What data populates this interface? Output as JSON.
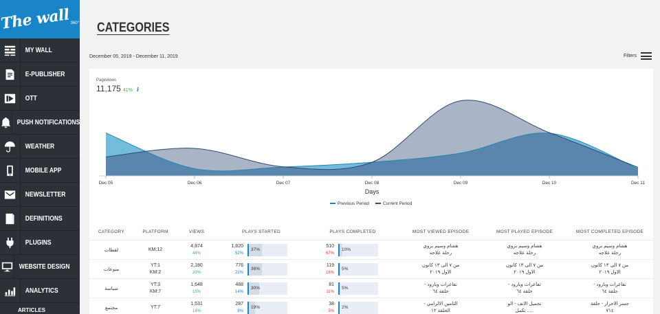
{
  "logo": {
    "text": "The wall",
    "sup": "360°"
  },
  "sidebar": {
    "items": [
      {
        "label": "MY WALL",
        "icon": "brick-wall-icon"
      },
      {
        "label": "E-PUBLISHER",
        "icon": "document-edit-icon"
      },
      {
        "label": "OTT",
        "icon": "play-icon"
      },
      {
        "label": "PUSH NOTIFICATIONS",
        "icon": "bell-icon"
      },
      {
        "label": "WEATHER",
        "icon": "umbrella-icon"
      },
      {
        "label": "MOBILE APP",
        "icon": "mobile-icon"
      },
      {
        "label": "NEWSLETTER",
        "icon": "newsletter-icon"
      },
      {
        "label": "DEFINITIONS",
        "icon": "book-icon"
      },
      {
        "label": "PLUGINS",
        "icon": "plug-icon"
      },
      {
        "label": "WEBSITE DESIGN",
        "icon": "monitor-icon"
      },
      {
        "label": "ANALYTICS",
        "icon": "analytics-icon"
      }
    ],
    "sub_item": "ARTICLES"
  },
  "page": {
    "title": "CATEGORIES",
    "date_range": "December 05, 2019 - December 11, 2019",
    "filters_label": "Filters"
  },
  "metric": {
    "label": "Pageviews",
    "value": "11,175",
    "change": "41%",
    "info": "i"
  },
  "chart_data": {
    "type": "area",
    "x": [
      "Dec 05",
      "Dec 06",
      "Dec 07",
      "Dec 08",
      "Dec 09",
      "Dec 10",
      "Dec 11"
    ],
    "xlabel": "Days",
    "series": [
      {
        "name": "Current Period",
        "values": [
          1000,
          1450,
          480,
          720,
          3960,
          2280,
          450
        ]
      },
      {
        "name": "Previous Period",
        "values": [
          2260,
          380,
          470,
          720,
          1200,
          2250,
          380
        ]
      }
    ],
    "legend": "bottom",
    "colors": {
      "current_fill": "#9aa8bd",
      "current_line": "#2e4a75",
      "previous_fill": "#5ab0d6",
      "previous_line": "#1d86b0",
      "overlap_fill": "#5a86ad"
    }
  },
  "table": {
    "headers": [
      "CATEGORY",
      "PLATFORM",
      "VIEWS",
      "PLAYS STARTED",
      "PLAYS COMPLETED",
      "MOST VIEWED EPISODE",
      "MOST PLAYED EPISODE",
      "MOST COMPLETED EPISODE"
    ],
    "rows": [
      {
        "category": "لقطات",
        "platform": [
          "KM:12"
        ],
        "views": "4,874",
        "views_pct": "44%",
        "ps": "1,820",
        "ps_pct": "52%",
        "ps_bar": "37%",
        "ps_frac": 0.37,
        "pc": "510",
        "pc_pct": "67%",
        "pc_bar": "10%",
        "pc_frac": 0.1,
        "mv": [
          "هشام وسيم بروي",
          "رحلة علاجه"
        ],
        "mp": [
          "هشام وسيم بروي",
          "رحلة علاجه"
        ],
        "mc": [
          "هشام وسيم بروي",
          "رحلة علاجه"
        ]
      },
      {
        "category": "منوعات",
        "platform": [
          "YT:1",
          "KM:2"
        ],
        "views": "2,180",
        "views_pct": "20%",
        "ps": "776",
        "ps_pct": "22%",
        "ps_bar": "36%",
        "ps_frac": 0.36,
        "pc": "119",
        "pc_pct": "16%",
        "pc_bar": "5%",
        "pc_frac": 0.05,
        "mv": [
          "من ٧ الى ١٣ كانون",
          "الاول ٢٠١٩"
        ],
        "mp": [
          "من ٧ الى ١٣ كانون",
          "الاول ٢٠١٩"
        ],
        "mc": [
          "من ٧ الى ١٣ كانون",
          "الاول ٢٠١٩"
        ]
      },
      {
        "category": "سياسة",
        "platform": [
          "YT:3",
          "KM:7"
        ],
        "views": "1,648",
        "views_pct": "15%",
        "ps": "488",
        "ps_pct": "14%",
        "ps_bar": "30%",
        "ps_frac": 0.3,
        "pc": "81",
        "pc_pct": "11%",
        "pc_bar": "5%",
        "pc_frac": 0.05,
        "mv": [
          "تفاعرات وبارود -",
          "حلقة ٦٤"
        ],
        "mp": [
          "تفاعرات وبارود -",
          "حلقة ٦٤"
        ],
        "mc": [
          "تفاعرات وبارود -",
          "حلقة ٦٤"
        ]
      },
      {
        "category": "مجتمع",
        "platform": [
          "YT:7"
        ],
        "views": "1,531",
        "views_pct": "14%",
        "ps": "287",
        "ps_pct": "8%",
        "ps_bar": "19%",
        "ps_frac": 0.19,
        "pc": "38",
        "pc_pct": "5%",
        "pc_bar": "2%",
        "pc_frac": 0.02,
        "mv": [
          "التامين الالزامي -",
          "الحلقة ١٢"
        ],
        "mp": [
          "تجميل الانف - الو",
          "..... تكمل"
        ],
        "mc": [
          "جسر الاحرار - حلقة",
          "٧١٤"
        ]
      }
    ]
  }
}
